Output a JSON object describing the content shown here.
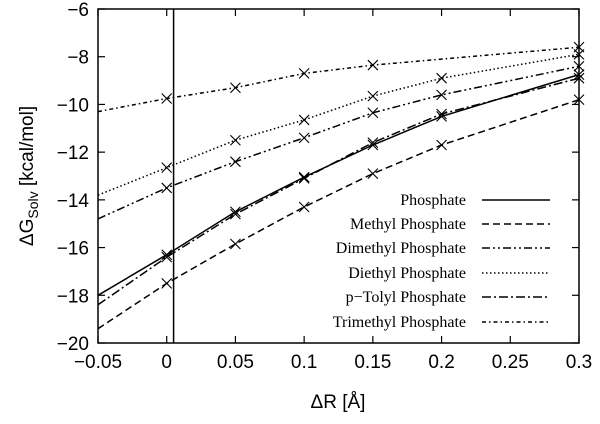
{
  "chart_data": {
    "type": "line",
    "xlabel": "ΔR [Å]",
    "ylabel_main": "ΔG",
    "ylabel_sub": "Solv",
    "ylabel_unit": " [kcal/mol]",
    "xlim": [
      -0.05,
      0.3
    ],
    "ylim": [
      -20,
      -6
    ],
    "xticks": [
      "-0.05",
      "0",
      "0.05",
      "0.1",
      "0.15",
      "0.2",
      "0.25",
      "0.3"
    ],
    "xtick_values": [
      -0.05,
      0,
      0.05,
      0.1,
      0.15,
      0.2,
      0.25,
      0.3
    ],
    "yticks": [
      "-20",
      "-18",
      "-16",
      "-14",
      "-12",
      "-10",
      "-8",
      "-6"
    ],
    "ytick_values": [
      -20,
      -18,
      -16,
      -14,
      -12,
      -10,
      -8,
      -6
    ],
    "vertical_line_x": 0.005,
    "grid": false,
    "legend_position": "bottom-right",
    "marker": "x",
    "series": [
      {
        "name": "Phosphate",
        "dash": "solid",
        "x": [
          0,
          0.05,
          0.1,
          0.15,
          0.2,
          0.3
        ],
        "y": [
          -16.3,
          -14.5,
          -13.05,
          -11.7,
          -10.5,
          -8.75
        ],
        "y_at_xmin": -18.0
      },
      {
        "name": "Methyl Phosphate",
        "dash": "dashed",
        "x": [
          0,
          0.05,
          0.1,
          0.15,
          0.2,
          0.3
        ],
        "y": [
          -17.5,
          -15.85,
          -14.3,
          -12.9,
          -11.7,
          -9.8
        ],
        "y_at_xmin": -19.4
      },
      {
        "name": "Dimethyl Phosphate",
        "dash": "dash-dot-dot",
        "x": [
          0,
          0.05,
          0.1,
          0.15,
          0.2,
          0.3
        ],
        "y": [
          -13.5,
          -12.4,
          -11.4,
          -10.35,
          -9.6,
          -8.4
        ],
        "y_at_xmin": -14.8
      },
      {
        "name": "Diethyl Phosphate",
        "dash": "dotted",
        "x": [
          0,
          0.05,
          0.1,
          0.15,
          0.2,
          0.3
        ],
        "y": [
          -12.65,
          -11.5,
          -10.65,
          -9.65,
          -8.9,
          -7.9
        ],
        "y_at_xmin": -13.8
      },
      {
        "name": "p−Tolyl Phosphate",
        "dash": "dash-dot",
        "x": [
          0,
          0.05,
          0.1,
          0.15,
          0.2,
          0.3
        ],
        "y": [
          -16.4,
          -14.6,
          -13.1,
          -11.6,
          -10.4,
          -8.9
        ],
        "y_at_xmin": -18.4
      },
      {
        "name": "Trimethyl Phosphate",
        "dash": "short-dash-dot",
        "x": [
          0,
          0.05,
          0.1,
          0.15,
          0.3
        ],
        "y": [
          -9.75,
          -9.3,
          -8.7,
          -8.35,
          -7.6
        ],
        "y_at_xmin": -10.3
      }
    ]
  }
}
